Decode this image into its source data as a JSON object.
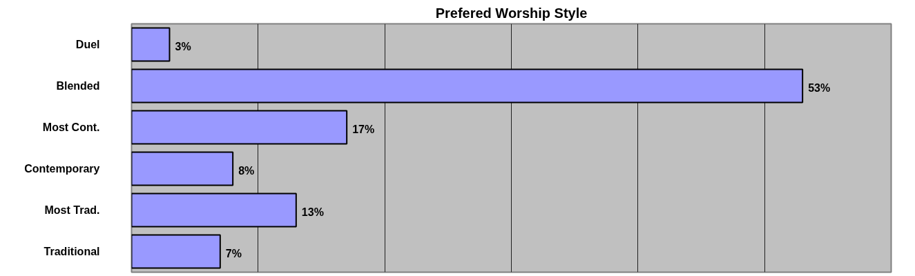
{
  "chart_data": {
    "type": "bar",
    "orientation": "horizontal",
    "title": "Prefered Worship Style",
    "categories": [
      "Duel",
      "Blended",
      "Most Cont.",
      "Contemporary",
      "Most Trad.",
      "Traditional"
    ],
    "values": [
      3,
      53,
      17,
      8,
      13,
      7
    ],
    "value_labels": [
      "3%",
      "53%",
      "17%",
      "8%",
      "13%",
      "7%"
    ],
    "color": "#9999ff",
    "xlim": [
      0,
      60
    ],
    "xticks": [
      {
        "value": 0,
        "label": null
      },
      {
        "value": 10,
        "label": null
      },
      {
        "value": 20,
        "label": null
      },
      {
        "value": 30,
        "label": null
      },
      {
        "value": 40,
        "label": null
      },
      {
        "value": 50,
        "label": null
      },
      {
        "value": 60,
        "label": null
      }
    ],
    "grid": "x",
    "tick_labels": "y"
  }
}
